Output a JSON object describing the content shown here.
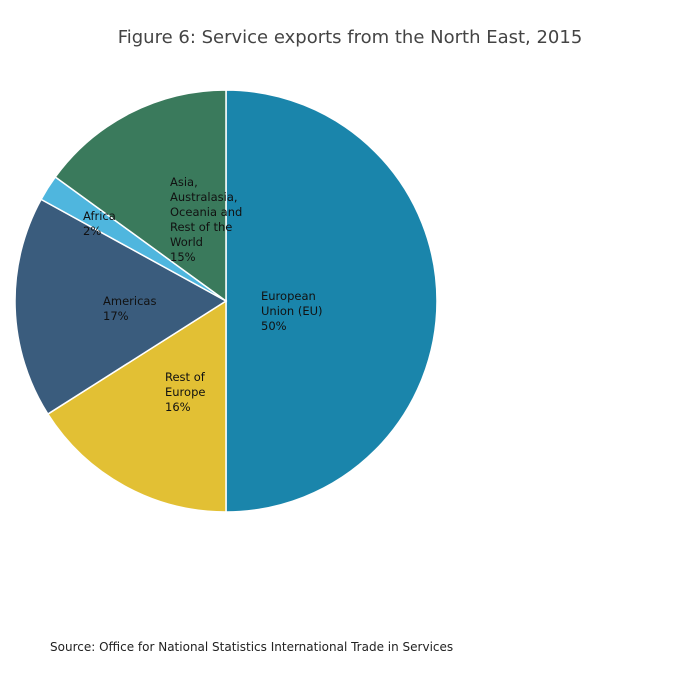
{
  "title": "Figure 6: Service exports from the North East, 2015",
  "source": "Source: Office for National Statistics International Trade in Services",
  "chart_data": {
    "type": "pie",
    "title": "Figure 6: Service exports from the North East, 2015",
    "direction": "clockwise",
    "start": "12 o'clock",
    "slices": [
      {
        "label": "European Union (EU)",
        "percent": 50,
        "label_lines": [
          "European",
          "Union (EU)",
          "50%"
        ],
        "color": "#1a85ab"
      },
      {
        "label": "Rest of Europe",
        "percent": 16,
        "label_lines": [
          "Rest of",
          "Europe",
          "16%"
        ],
        "color": "#e2c034"
      },
      {
        "label": "Americas",
        "percent": 17,
        "label_lines": [
          "Americas",
          "17%"
        ],
        "color": "#3a5c7d"
      },
      {
        "label": "Africa",
        "percent": 2,
        "label_lines": [
          "Africa",
          "2%"
        ],
        "color": "#4fb6de"
      },
      {
        "label": "Asia, Australasia, Oceania and Rest of the World",
        "percent": 15,
        "label_lines": [
          "Asia,",
          "Australasia,",
          "Oceania and",
          "Rest of the",
          "World",
          "15%"
        ],
        "color": "#3a7a5c"
      }
    ]
  }
}
